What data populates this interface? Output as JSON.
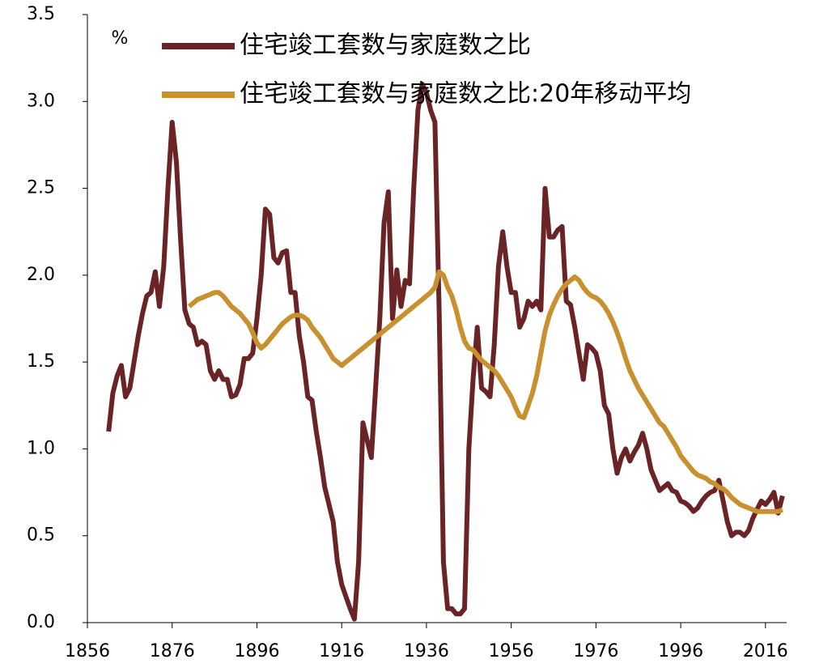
{
  "chart_data": {
    "type": "line",
    "y_unit": "%",
    "x": [
      1861,
      1862,
      1863,
      1864,
      1865,
      1866,
      1867,
      1868,
      1869,
      1870,
      1871,
      1872,
      1873,
      1874,
      1875,
      1876,
      1877,
      1878,
      1879,
      1880,
      1881,
      1882,
      1883,
      1884,
      1885,
      1886,
      1887,
      1888,
      1889,
      1890,
      1891,
      1892,
      1893,
      1894,
      1895,
      1896,
      1897,
      1898,
      1899,
      1900,
      1901,
      1902,
      1903,
      1904,
      1905,
      1906,
      1907,
      1908,
      1909,
      1910,
      1911,
      1912,
      1913,
      1914,
      1915,
      1916,
      1917,
      1918,
      1919,
      1920,
      1921,
      1922,
      1923,
      1924,
      1925,
      1926,
      1927,
      1928,
      1929,
      1930,
      1931,
      1932,
      1933,
      1934,
      1935,
      1936,
      1937,
      1938,
      1939,
      1940,
      1941,
      1942,
      1943,
      1944,
      1945,
      1946,
      1947,
      1948,
      1949,
      1950,
      1951,
      1952,
      1953,
      1954,
      1955,
      1956,
      1957,
      1958,
      1959,
      1960,
      1961,
      1962,
      1963,
      1964,
      1965,
      1966,
      1967,
      1968,
      1969,
      1970,
      1971,
      1972,
      1973,
      1974,
      1975,
      1976,
      1977,
      1978,
      1979,
      1980,
      1981,
      1982,
      1983,
      1984,
      1985,
      1986,
      1987,
      1988,
      1989,
      1990,
      1991,
      1992,
      1993,
      1994,
      1995,
      1996,
      1997,
      1998,
      1999,
      2000,
      2001,
      2002,
      2003,
      2004,
      2005,
      2006,
      2007,
      2008,
      2009,
      2010,
      2011,
      2012,
      2013,
      2014,
      2015,
      2016,
      2017,
      2018,
      2019,
      2020
    ],
    "series": [
      {
        "name": "住宅竣工套数与家庭数之比",
        "color": "#6b2426",
        "values": [
          1.1,
          1.32,
          1.42,
          1.48,
          1.3,
          1.35,
          1.5,
          1.65,
          1.78,
          1.88,
          1.9,
          2.02,
          1.82,
          2.05,
          2.5,
          2.88,
          2.65,
          2.2,
          1.8,
          1.72,
          1.7,
          1.6,
          1.62,
          1.6,
          1.45,
          1.4,
          1.45,
          1.4,
          1.4,
          1.3,
          1.31,
          1.37,
          1.52,
          1.52,
          1.55,
          1.75,
          2.0,
          2.38,
          2.35,
          2.1,
          2.07,
          2.13,
          2.14,
          1.9,
          1.9,
          1.65,
          1.5,
          1.3,
          1.28,
          1.1,
          0.95,
          0.78,
          0.68,
          0.58,
          0.35,
          0.22,
          0.15,
          0.08,
          0.02,
          0.35,
          1.15,
          1.05,
          0.95,
          1.35,
          1.75,
          2.3,
          2.48,
          1.75,
          2.03,
          1.82,
          1.97,
          1.95,
          2.5,
          2.95,
          3.1,
          3.05,
          2.95,
          2.88,
          1.8,
          0.35,
          0.08,
          0.08,
          0.05,
          0.05,
          0.08,
          1.0,
          1.4,
          1.7,
          1.35,
          1.33,
          1.3,
          1.6,
          2.05,
          2.25,
          2.05,
          1.9,
          1.9,
          1.7,
          1.75,
          1.85,
          1.82,
          1.85,
          1.8,
          2.5,
          2.22,
          2.22,
          2.26,
          2.28,
          1.85,
          1.83,
          1.7,
          1.55,
          1.4,
          1.6,
          1.58,
          1.55,
          1.45,
          1.25,
          1.2,
          1.0,
          0.86,
          0.95,
          1.0,
          0.93,
          0.98,
          1.02,
          1.09,
          1.0,
          0.88,
          0.82,
          0.76,
          0.78,
          0.8,
          0.76,
          0.75,
          0.7,
          0.69,
          0.67,
          0.64,
          0.66,
          0.7,
          0.73,
          0.75,
          0.76,
          0.82,
          0.7,
          0.58,
          0.5,
          0.52,
          0.52,
          0.5,
          0.53,
          0.6,
          0.65,
          0.7,
          0.68,
          0.71,
          0.75,
          0.63,
          0.73
        ]
      },
      {
        "name": "住宅竣工套数与家庭数之比:20年移动平均",
        "color": "#c8902f",
        "values": [
          null,
          null,
          null,
          null,
          null,
          null,
          null,
          null,
          null,
          null,
          null,
          null,
          null,
          null,
          null,
          null,
          null,
          null,
          null,
          1.82,
          1.84,
          1.86,
          1.87,
          1.88,
          1.89,
          1.9,
          1.9,
          1.88,
          1.85,
          1.82,
          1.8,
          1.78,
          1.75,
          1.72,
          1.67,
          1.61,
          1.58,
          1.6,
          1.63,
          1.66,
          1.69,
          1.72,
          1.74,
          1.76,
          1.77,
          1.77,
          1.76,
          1.74,
          1.7,
          1.67,
          1.64,
          1.6,
          1.56,
          1.52,
          1.5,
          1.48,
          1.5,
          1.52,
          1.54,
          1.56,
          1.58,
          1.6,
          1.62,
          1.64,
          1.66,
          1.68,
          1.7,
          1.72,
          1.74,
          1.76,
          1.78,
          1.8,
          1.82,
          1.84,
          1.86,
          1.88,
          1.9,
          1.93,
          2.02,
          2.0,
          1.93,
          1.88,
          1.8,
          1.7,
          1.62,
          1.58,
          1.57,
          1.54,
          1.51,
          1.49,
          1.47,
          1.45,
          1.42,
          1.38,
          1.34,
          1.3,
          1.24,
          1.19,
          1.18,
          1.25,
          1.32,
          1.42,
          1.55,
          1.68,
          1.77,
          1.83,
          1.88,
          1.92,
          1.95,
          1.97,
          1.99,
          1.97,
          1.93,
          1.9,
          1.88,
          1.87,
          1.85,
          1.82,
          1.78,
          1.73,
          1.67,
          1.6,
          1.52,
          1.45,
          1.4,
          1.35,
          1.31,
          1.27,
          1.23,
          1.19,
          1.15,
          1.13,
          1.09,
          1.05,
          1.01,
          0.96,
          0.93,
          0.9,
          0.87,
          0.85,
          0.84,
          0.83,
          0.81,
          0.8,
          0.78,
          0.77,
          0.75,
          0.72,
          0.7,
          0.68,
          0.67,
          0.66,
          0.65,
          0.64,
          0.64,
          0.64,
          0.64,
          0.64,
          0.64,
          0.65
        ]
      }
    ],
    "xlim": [
      1856,
      2021
    ],
    "xticks": [
      1856,
      1876,
      1896,
      1916,
      1936,
      1956,
      1976,
      1996,
      2016
    ],
    "ylim": [
      0,
      3.5
    ],
    "yticks": [
      {
        "value": 0,
        "label": "0.0"
      },
      0.5,
      {
        "value": 1,
        "label": "1.0"
      },
      1.5,
      {
        "value": 2,
        "label": "2.0"
      },
      2.5,
      {
        "value": 3,
        "label": "3.0"
      },
      3.5
    ],
    "grid": false
  }
}
